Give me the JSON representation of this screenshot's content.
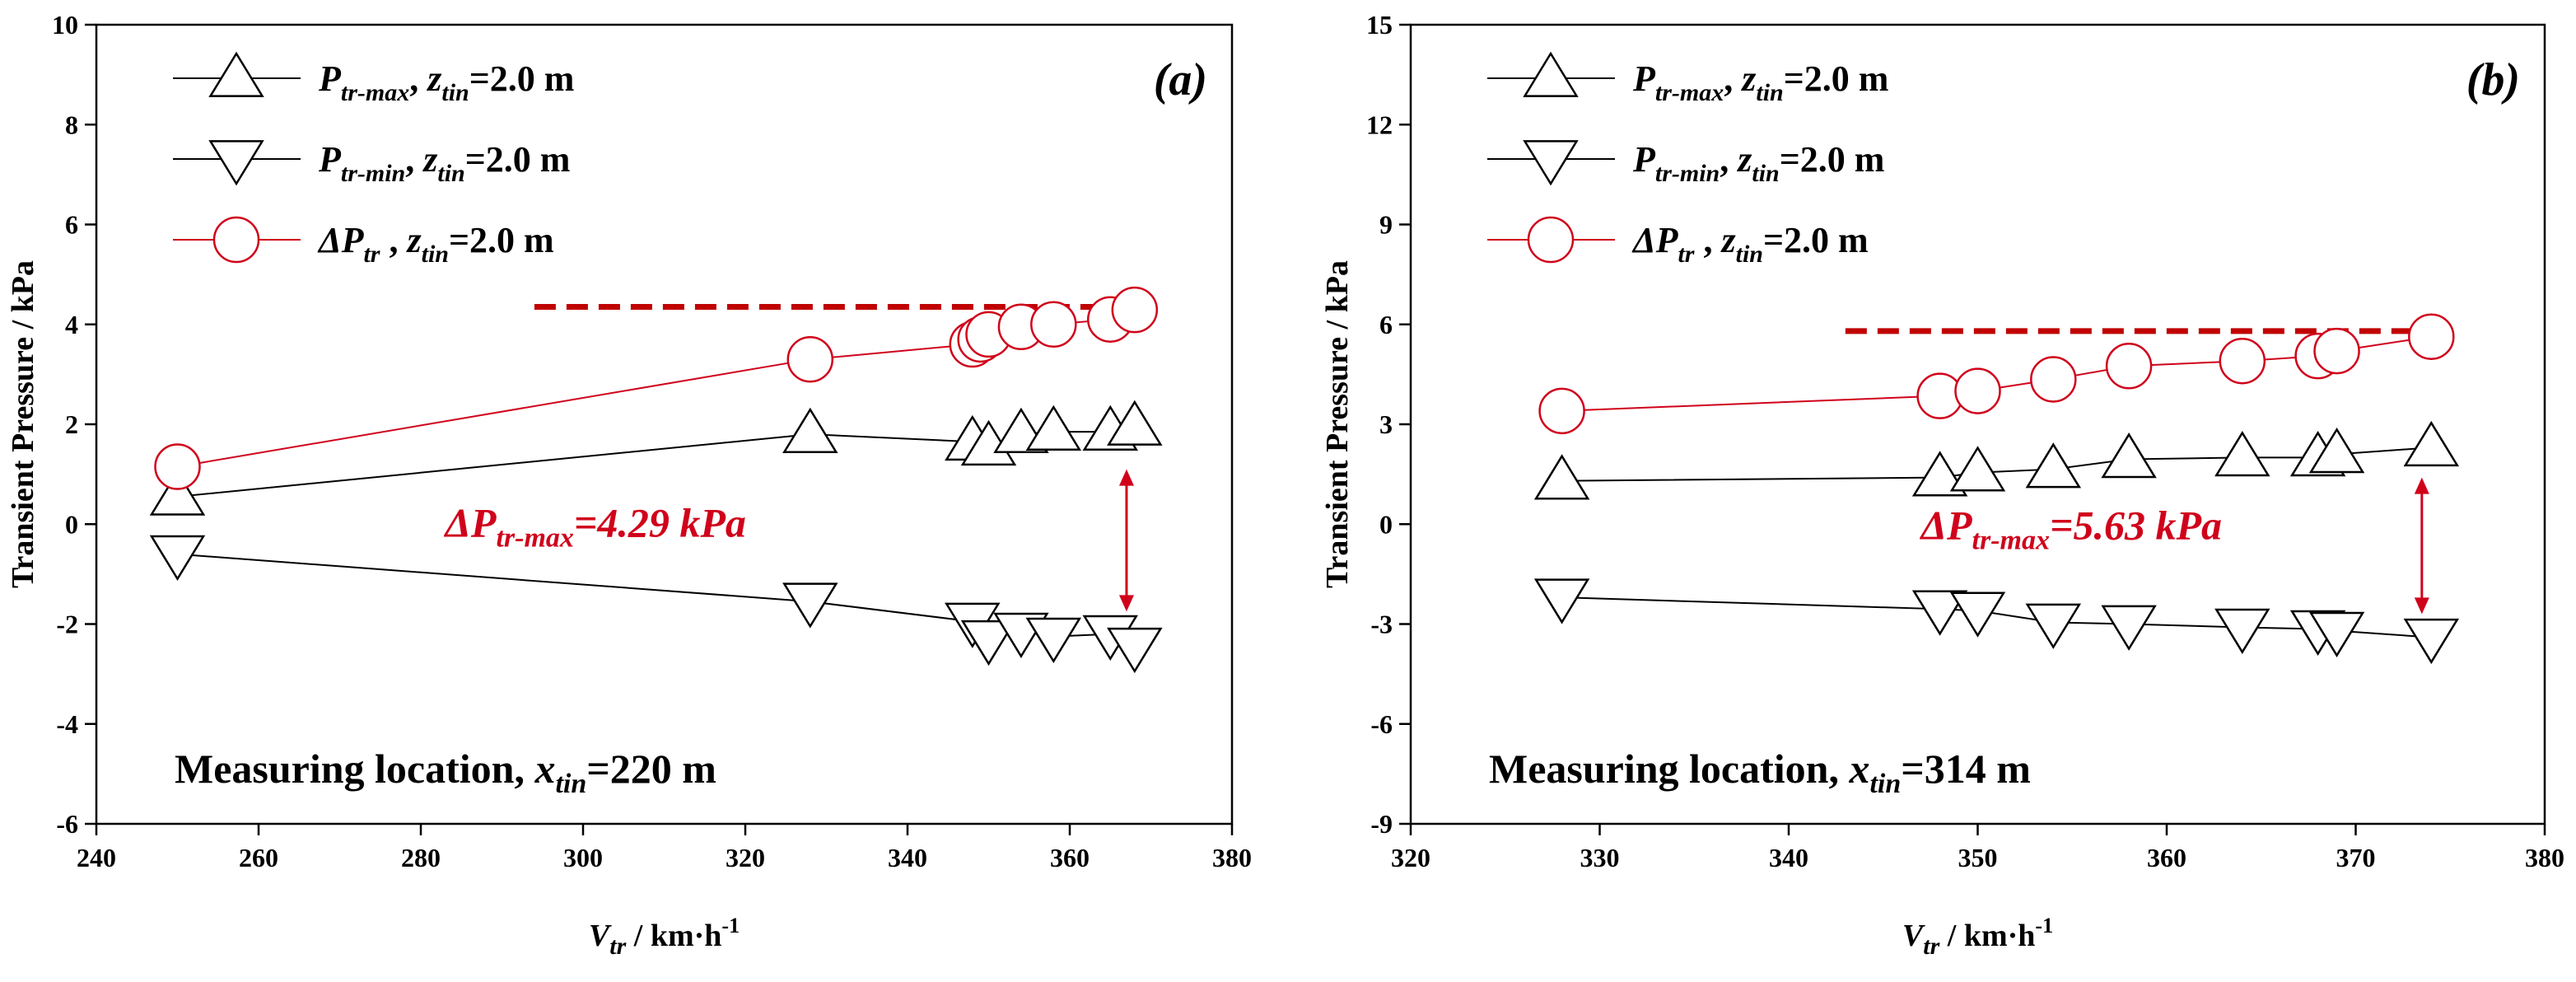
{
  "colors": {
    "black": "#000000",
    "red": "#d0021b",
    "ref_line": "#c00000"
  },
  "chart_data": [
    {
      "type": "line",
      "panel_label": "(a)",
      "xlabel": {
        "main": "V",
        "sub": "tr",
        "unit": " / km·h",
        "sup": "-1"
      },
      "ylabel": "Transient Pressure / kPa",
      "xlim": [
        240,
        380
      ],
      "ylim": [
        -6,
        10
      ],
      "xticks": [
        240,
        260,
        280,
        300,
        320,
        340,
        360,
        380
      ],
      "yticks": [
        -6,
        -4,
        -2,
        0,
        2,
        4,
        6,
        8,
        10
      ],
      "series": [
        {
          "name": "P_tr-max",
          "legend_main": "P",
          "legend_sub": "tr-max",
          "legend_suffix": ",",
          "legend_z": "z",
          "legend_z_sub": "tin",
          "legend_value": "=2.0 m",
          "marker": "triangle-up",
          "color": "#000000",
          "x": [
            250,
            328,
            348,
            350,
            354,
            358,
            365,
            368
          ],
          "y": [
            0.55,
            1.8,
            1.65,
            1.55,
            1.8,
            1.85,
            1.85,
            1.95
          ]
        },
        {
          "name": "P_tr-min",
          "legend_main": "P",
          "legend_sub": "tr-min",
          "legend_suffix": ",",
          "legend_z": "z",
          "legend_z_sub": "tin",
          "legend_value": "=2.0 m",
          "marker": "triangle-down",
          "color": "#000000",
          "x": [
            250,
            328,
            348,
            350,
            354,
            358,
            365,
            368
          ],
          "y": [
            -0.6,
            -1.55,
            -1.95,
            -2.3,
            -2.15,
            -2.25,
            -2.2,
            -2.45
          ]
        },
        {
          "name": "ΔP_tr",
          "legend_main": "ΔP",
          "legend_sub": "tr",
          "legend_suffix": "  ,",
          "legend_z": "z",
          "legend_z_sub": "tin",
          "legend_value": "=2.0 m",
          "marker": "circle",
          "color": "#d0021b",
          "x": [
            250,
            328,
            348,
            349,
            350,
            354,
            358,
            365,
            368
          ],
          "y": [
            1.15,
            3.3,
            3.6,
            3.7,
            3.8,
            3.95,
            4.0,
            4.1,
            4.29
          ]
        }
      ],
      "reference_line": {
        "y": 4.35,
        "x_start": 294,
        "x_end": 368
      },
      "annotation": {
        "main": "ΔP",
        "sub": "tr-max",
        "value": "=4.29 kPa",
        "arrow_x": 367,
        "arrow_y_top": 1.1,
        "arrow_y_bottom": -1.75,
        "text_x": 283,
        "text_y": -0.25
      },
      "measuring_note": {
        "prefix": "Measuring location, ",
        "var": "x",
        "var_sub": "tin",
        "value": "=220 m"
      }
    },
    {
      "type": "line",
      "panel_label": "(b)",
      "xlabel": {
        "main": "V",
        "sub": "tr",
        "unit": " / km·h",
        "sup": "-1"
      },
      "ylabel": "Transient Pressure / kPa",
      "xlim": [
        320,
        380
      ],
      "ylim": [
        -9,
        15
      ],
      "xticks": [
        320,
        330,
        340,
        350,
        360,
        370,
        380
      ],
      "yticks": [
        -9,
        -6,
        -3,
        0,
        3,
        6,
        9,
        12,
        15
      ],
      "series": [
        {
          "name": "P_tr-max",
          "legend_main": "P",
          "legend_sub": "tr-max",
          "legend_suffix": ",",
          "legend_z": "z",
          "legend_z_sub": "tin",
          "legend_value": "=2.0 m",
          "marker": "triangle-up",
          "color": "#000000",
          "x": [
            328,
            348,
            350,
            354,
            358,
            364,
            368,
            369,
            374
          ],
          "y": [
            1.3,
            1.4,
            1.55,
            1.65,
            1.95,
            2.0,
            2.0,
            2.1,
            2.3
          ]
        },
        {
          "name": "P_tr-min",
          "legend_main": "P",
          "legend_sub": "tr-min",
          "legend_suffix": ",",
          "legend_z": "z",
          "legend_z_sub": "tin",
          "legend_value": "=2.0 m",
          "marker": "triangle-down",
          "color": "#000000",
          "x": [
            328,
            348,
            350,
            354,
            358,
            364,
            368,
            369,
            374
          ],
          "y": [
            -2.2,
            -2.55,
            -2.6,
            -2.95,
            -3.0,
            -3.1,
            -3.15,
            -3.2,
            -3.4
          ]
        },
        {
          "name": "ΔP_tr",
          "legend_main": "ΔP",
          "legend_sub": "tr",
          "legend_suffix": "  ,",
          "legend_z": "z",
          "legend_z_sub": "tin",
          "legend_value": "=2.0 m",
          "marker": "circle",
          "color": "#d0021b",
          "x": [
            328,
            348,
            350,
            354,
            358,
            364,
            368,
            369,
            374
          ],
          "y": [
            3.4,
            3.85,
            4.0,
            4.35,
            4.75,
            4.9,
            5.05,
            5.2,
            5.63
          ]
        }
      ],
      "reference_line": {
        "y": 5.8,
        "x_start": 343,
        "x_end": 374
      },
      "annotation": {
        "main": "ΔP",
        "sub": "tr-max",
        "value": "=5.63 kPa",
        "arrow_x": 373.5,
        "arrow_y_top": 1.4,
        "arrow_y_bottom": -2.7,
        "text_x": 347,
        "text_y": -0.45
      },
      "measuring_note": {
        "prefix": "Measuring location, ",
        "var": "x",
        "var_sub": "tin",
        "value": "=314 m"
      }
    }
  ]
}
